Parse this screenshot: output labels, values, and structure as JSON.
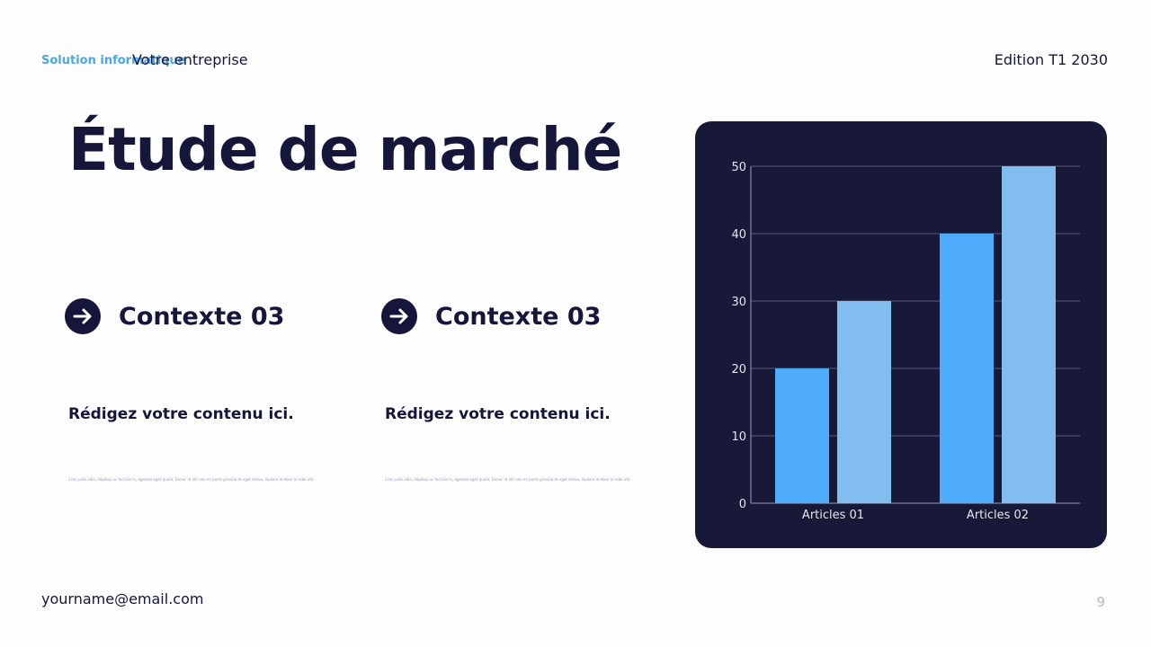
{
  "header": {
    "tag": "Solution informatique",
    "company": "Votre entreprise",
    "edition": "Edition T1 2030"
  },
  "title": "Étude de marché",
  "sections": [
    {
      "heading": "Contexte 03",
      "subheading": "Rédigez votre contenu ici.",
      "body": "Cras justo odio, dapibus ac facilisis in, egestas eget quam. Donec id elit non mi porta gravida at eget metus. Nullam id dolor id nibh ultricies."
    },
    {
      "heading": "Contexte 03",
      "subheading": "Rédigez votre contenu ici.",
      "body": "Cras justo odio, dapibus ac facilisis in, egestas eget quam. Donec id elit non mi porta gravida at eget metus. Nullam id dolor id nibh ultricies."
    }
  ],
  "footer": {
    "email": "yourname@email.com",
    "page_number": "9"
  },
  "icons": {
    "context_icon": "arrow-right-circle-icon"
  },
  "colors": {
    "navy": "#16163a",
    "chart_background": "#181838",
    "accent": "#4aa8ea",
    "series_1": "#4eacfb",
    "series_2": "#82bdf0"
  },
  "chart_data": {
    "type": "bar",
    "categories": [
      "Articles 01",
      "Articles 02"
    ],
    "series": [
      {
        "values": [
          20,
          40
        ]
      },
      {
        "values": [
          30,
          50
        ]
      }
    ],
    "ylim": [
      0,
      50
    ],
    "yticks": [
      0,
      10,
      20,
      30,
      40,
      50
    ],
    "grid": true,
    "legend": "none"
  }
}
